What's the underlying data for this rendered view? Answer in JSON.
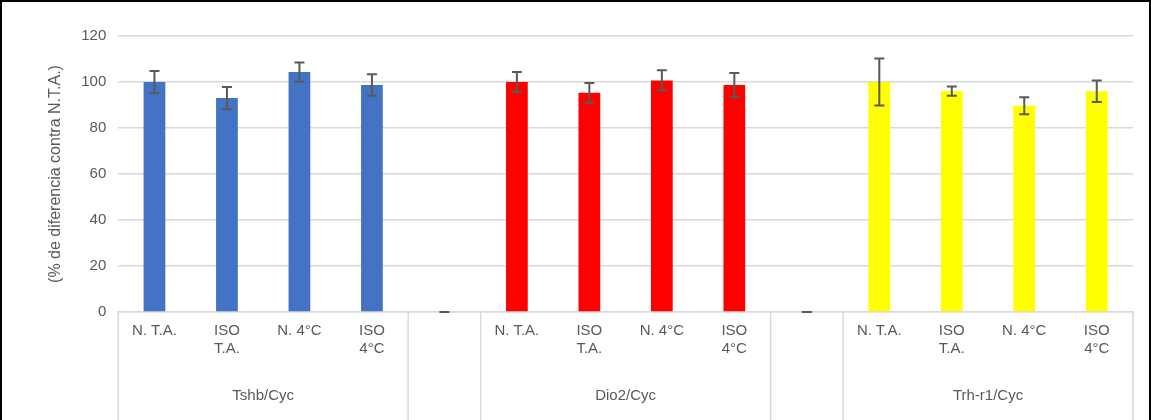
{
  "chart_data": {
    "type": "bar",
    "ylabel": "(% de diferencia contra N.T.A.)",
    "categories": [
      "N. T.A.",
      "ISO T.A.",
      "N. 4°C",
      "ISO 4°C",
      null,
      "N. T.A.",
      "ISO T.A.",
      "N. 4°C",
      "ISO 4°C",
      null,
      "N. T.A.",
      "ISO T.A.",
      "N. 4°C",
      "ISO 4°C"
    ],
    "values": [
      100,
      93,
      104.3,
      98.7,
      0,
      100,
      95.3,
      100.7,
      98.7,
      0,
      100,
      96,
      89.7,
      96
    ],
    "errors": [
      4.8,
      4.8,
      4.2,
      4.7,
      0,
      4.3,
      4.3,
      4.4,
      5.2,
      0,
      10.2,
      2,
      3.7,
      4.7
    ],
    "colors": [
      "#4472c4",
      "#4472c4",
      "#4472c4",
      "#4472c4",
      "#4472c4",
      "#ff0000",
      "#ff0000",
      "#ff0000",
      "#ff0000",
      "#ff0000",
      "#ffff00",
      "#ffff00",
      "#ffff00",
      "#ffff00"
    ],
    "annotations": [
      "Tshb/Cyc",
      "Dio2/Cyc",
      "Trh-r1/Cyc"
    ],
    "ylim": [
      0,
      120
    ],
    "yticks": [
      0,
      20,
      40,
      60,
      80,
      100,
      120
    ],
    "grid": "y",
    "legend": false
  }
}
